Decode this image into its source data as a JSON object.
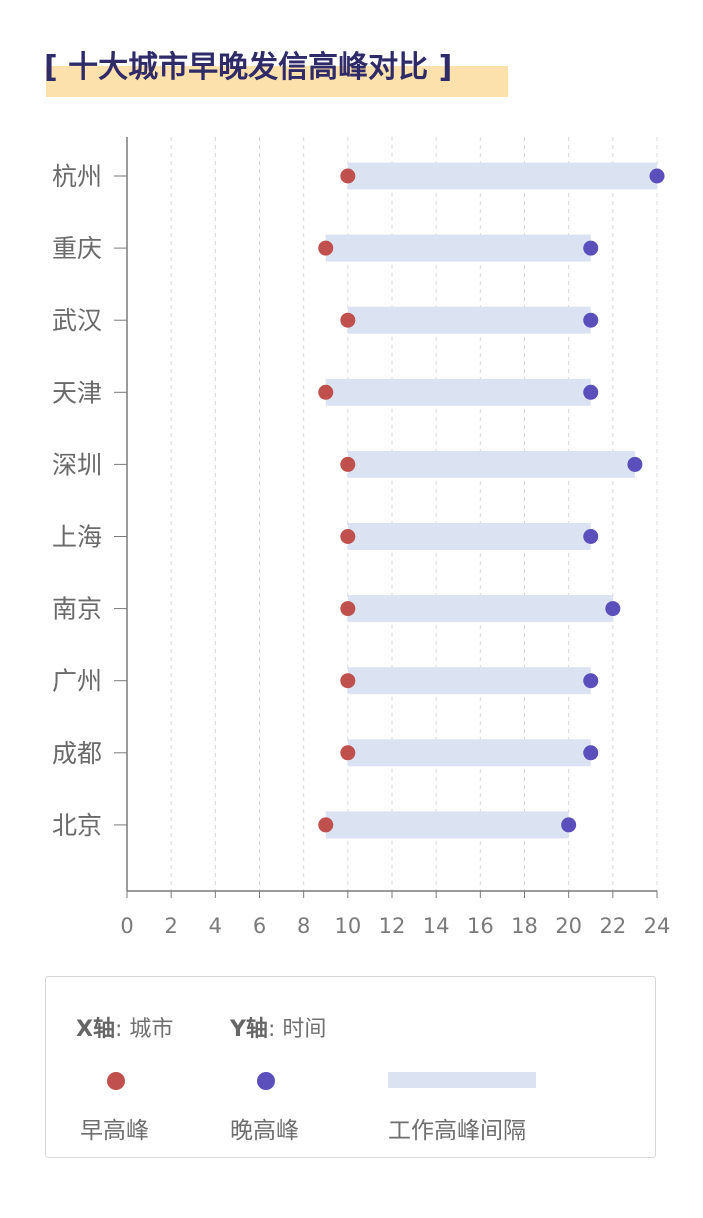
{
  "title": "[ 十大城市早晚发信高峰对比 ]",
  "legend": {
    "x_axis_key": "X轴",
    "x_axis_value": ": 城市",
    "y_axis_key": "Y轴",
    "y_axis_value": ": 时间",
    "morning_label": "早高峰",
    "evening_label": "晚高峰",
    "interval_label": "工作高峰间隔"
  },
  "colors": {
    "morning": "#c0504d",
    "evening": "#5b4fbb",
    "interval": "#dbe3f3",
    "title": "#2f2b68",
    "title_highlight": "#fde1ad"
  },
  "chart_data": {
    "type": "dumbbell",
    "title": "[ 十大城市早晚发信高峰对比 ]",
    "categories": [
      "杭州",
      "重庆",
      "武汉",
      "天津",
      "深圳",
      "上海",
      "南京",
      "广州",
      "成都",
      "北京"
    ],
    "series": [
      {
        "name": "早高峰",
        "values": [
          10,
          9,
          10,
          9,
          10,
          10,
          10,
          10,
          10,
          9
        ]
      },
      {
        "name": "晚高峰",
        "values": [
          24,
          21,
          21,
          21,
          23,
          21,
          22,
          21,
          21,
          20
        ]
      }
    ],
    "interval_name": "工作高峰间隔",
    "xlim": [
      0,
      24
    ],
    "xticks": [
      "0",
      "2",
      "4",
      "6",
      "8",
      "10",
      "12",
      "14",
      "16",
      "18",
      "20",
      "22",
      "24"
    ],
    "grid": "vertical-dashed"
  }
}
